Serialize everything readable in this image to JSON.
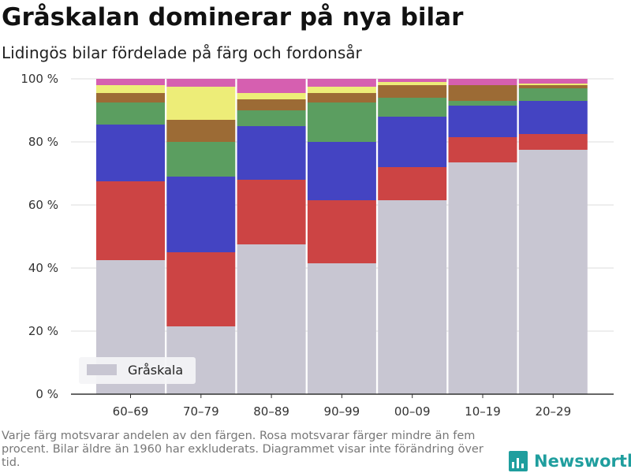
{
  "header": {
    "title": "Gråskalan dominerar på nya bilar",
    "subtitle": "Lidingös bilar fördelade på färg och fordonsår"
  },
  "footer": {
    "note": "Varje färg motsvarar andelen av den färgen. Rosa motsvarar färger mindre än fem procent. Bilar äldre än 1960 har exkluderats. Diagrammet visar inte förändring över tid.",
    "brand": "Newsworthy",
    "brand_color": "#1f9e9e"
  },
  "chart_data": {
    "type": "bar",
    "stacked": true,
    "categories": [
      "60–69",
      "70–79",
      "80–89",
      "90–99",
      "00–09",
      "10–19",
      "20–29"
    ],
    "y_ticks": [
      "0 %",
      "20 %",
      "40 %",
      "60 %",
      "80 %",
      "100 %"
    ],
    "ylim": [
      0,
      100
    ],
    "grid": true,
    "legend_position": "bottom-left",
    "series": [
      {
        "name": "Gråskala",
        "color": "#c8c6d2",
        "values": [
          42.5,
          21.5,
          47.5,
          41.5,
          61.5,
          73.5,
          77.5
        ]
      },
      {
        "color": "#cc4444",
        "values": [
          25.0,
          23.5,
          20.5,
          20.0,
          10.5,
          8.0,
          5.0
        ]
      },
      {
        "color": "#4444c2",
        "values": [
          18.0,
          24.0,
          17.0,
          18.5,
          16.0,
          10.0,
          10.5
        ]
      },
      {
        "color": "#5b9e60",
        "values": [
          7.0,
          11.0,
          5.0,
          12.5,
          6.0,
          1.5,
          4.0
        ]
      },
      {
        "color": "#9c6b35",
        "values": [
          3.0,
          7.0,
          3.5,
          3.0,
          4.0,
          5.0,
          1.0
        ]
      },
      {
        "color": "#eded78",
        "values": [
          2.5,
          10.5,
          2.0,
          2.0,
          1.0,
          0.0,
          0.5
        ]
      },
      {
        "color": "#d65fb0",
        "values": [
          2.0,
          2.5,
          4.5,
          2.5,
          1.0,
          2.0,
          1.5
        ]
      }
    ]
  }
}
